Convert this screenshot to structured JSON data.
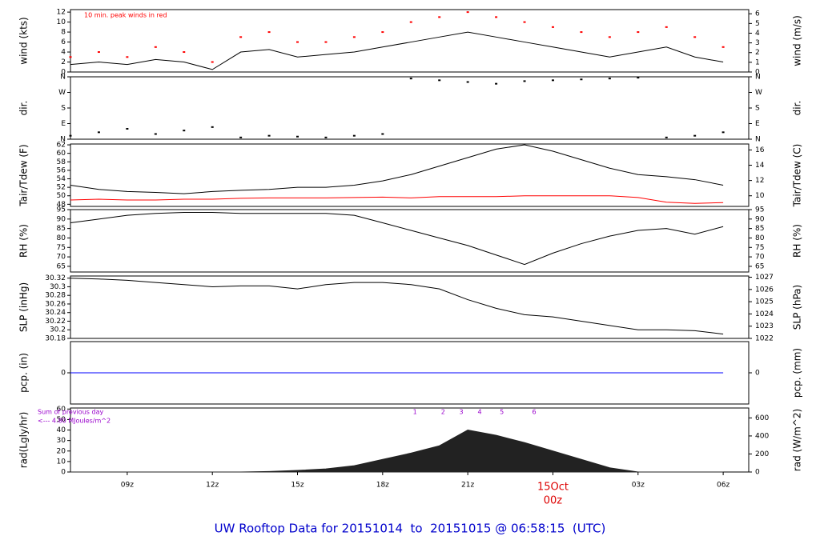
{
  "chart_data": [
    {
      "type": "line",
      "ylabel": "wind (kts)",
      "y2label": "wind (m/s)",
      "annotation": "10 min. peak winds in red",
      "x": [
        7,
        8,
        9,
        10,
        11,
        12,
        13,
        14,
        15,
        16,
        17,
        18,
        19,
        20,
        21,
        22,
        23,
        24,
        25,
        26,
        27,
        28,
        29,
        30
      ],
      "xlim": [
        7,
        30.9
      ],
      "ylim": [
        0,
        12.5
      ],
      "yticks": [
        0,
        2,
        4,
        6,
        8,
        10,
        12
      ],
      "y2lim": [
        0,
        6.43
      ],
      "y2ticks": [
        0,
        1,
        2,
        3,
        4,
        5,
        6
      ],
      "series": [
        {
          "name": "wind",
          "color": "#000000",
          "values": [
            1.5,
            2,
            1.5,
            2.5,
            2,
            0.5,
            4,
            4.5,
            3,
            3.5,
            4,
            5,
            6,
            7,
            8,
            7,
            6,
            5,
            4,
            3,
            4,
            5,
            3,
            2
          ]
        },
        {
          "name": "peak",
          "color": "#ff0000",
          "style": "points",
          "values": [
            3,
            4,
            3,
            5,
            4,
            2,
            7,
            8,
            6,
            6,
            7,
            8,
            10,
            11,
            12,
            11,
            10,
            9,
            8,
            7,
            8,
            9,
            7,
            5
          ]
        }
      ]
    },
    {
      "type": "scatter",
      "ylabel": "dir.",
      "y2label": "dir.",
      "x": [
        7,
        8,
        9,
        10,
        11,
        12,
        13,
        14,
        15,
        16,
        17,
        18,
        19,
        20,
        21,
        22,
        23,
        24,
        25,
        26,
        27,
        28,
        29,
        30
      ],
      "xlim": [
        7,
        30.9
      ],
      "ylim": [
        0,
        360
      ],
      "yticks": [
        {
          "value": 0,
          "label": "N"
        },
        {
          "value": 90,
          "label": "E"
        },
        {
          "value": 180,
          "label": "S"
        },
        {
          "value": 270,
          "label": "W"
        },
        {
          "value": 360,
          "label": "N"
        }
      ],
      "y2lim": [
        0,
        360
      ],
      "y2ticks": [
        {
          "value": 0,
          "label": "N"
        },
        {
          "value": 90,
          "label": "E"
        },
        {
          "value": 180,
          "label": "S"
        },
        {
          "value": 270,
          "label": "W"
        },
        {
          "value": 360,
          "label": "N"
        }
      ],
      "series": [
        {
          "name": "dir",
          "color": "#000000",
          "values": [
            20,
            40,
            60,
            30,
            50,
            70,
            10,
            20,
            15,
            10,
            20,
            30,
            350,
            340,
            330,
            320,
            335,
            340,
            345,
            350,
            355,
            10,
            20,
            40
          ]
        }
      ]
    },
    {
      "type": "line",
      "ylabel": "Tair/Tdew (F)",
      "y2label": "Tair/Tdew (C)",
      "x": [
        7,
        8,
        9,
        10,
        11,
        12,
        13,
        14,
        15,
        16,
        17,
        18,
        19,
        20,
        21,
        22,
        23,
        24,
        25,
        26,
        27,
        28,
        29,
        30
      ],
      "xlim": [
        7,
        30.9
      ],
      "ylim": [
        47.5,
        62.2
      ],
      "yticks": [
        48,
        50,
        52,
        54,
        56,
        58,
        60,
        62
      ],
      "y2lim": [
        8.61,
        16.78
      ],
      "y2ticks": [
        10,
        12,
        14,
        16
      ],
      "series": [
        {
          "name": "Tair",
          "color": "#000000",
          "values": [
            52.5,
            51.5,
            51,
            50.8,
            50.5,
            51,
            51.3,
            51.5,
            52,
            52,
            52.5,
            53.5,
            55,
            57,
            59,
            61,
            62,
            60.5,
            58.5,
            56.5,
            55,
            54.5,
            53.8,
            52.5
          ]
        },
        {
          "name": "Tdew",
          "color": "#ff0000",
          "values": [
            49,
            49.2,
            49,
            49,
            49.2,
            49.2,
            49.4,
            49.5,
            49.5,
            49.5,
            49.6,
            49.7,
            49.5,
            49.8,
            49.8,
            49.8,
            50,
            50,
            50,
            50,
            49.6,
            48.5,
            48.2,
            48.4
          ]
        }
      ]
    },
    {
      "type": "line",
      "ylabel": "RH (%)",
      "y2label": "RH (%)",
      "x": [
        7,
        8,
        9,
        10,
        11,
        12,
        13,
        14,
        15,
        16,
        17,
        18,
        19,
        20,
        21,
        22,
        23,
        24,
        25,
        26,
        27,
        28,
        29,
        30
      ],
      "xlim": [
        7,
        30.9
      ],
      "ylim": [
        62,
        95
      ],
      "yticks": [
        65,
        70,
        75,
        80,
        85,
        90,
        95
      ],
      "y2lim": [
        62,
        95
      ],
      "y2ticks": [
        65,
        70,
        75,
        80,
        85,
        90,
        95
      ],
      "series": [
        {
          "name": "RH",
          "color": "#000000",
          "values": [
            88,
            90,
            92,
            93,
            93.5,
            93.5,
            93,
            93,
            93,
            93,
            92,
            88,
            84,
            80,
            76,
            71,
            66,
            72,
            77,
            81,
            84,
            85,
            82,
            86
          ]
        }
      ]
    },
    {
      "type": "line",
      "ylabel": "SLP (inHg)",
      "y2label": "SLP (hPa)",
      "x": [
        7,
        8,
        9,
        10,
        11,
        12,
        13,
        14,
        15,
        16,
        17,
        18,
        19,
        20,
        21,
        22,
        23,
        24,
        25,
        26,
        27,
        28,
        29,
        30
      ],
      "xlim": [
        7,
        30.9
      ],
      "ylim": [
        30.18,
        30.325
      ],
      "yticks": [
        30.18,
        30.2,
        30.22,
        30.24,
        30.26,
        30.28,
        30.3,
        30.32
      ],
      "y2lim": [
        1022,
        1027.1
      ],
      "y2ticks": [
        1022,
        1023,
        1024,
        1025,
        1026,
        1027
      ],
      "series": [
        {
          "name": "SLP",
          "color": "#000000",
          "values": [
            30.32,
            30.318,
            30.315,
            30.31,
            30.305,
            30.3,
            30.302,
            30.302,
            30.295,
            30.305,
            30.31,
            30.31,
            30.305,
            30.295,
            30.27,
            30.25,
            30.235,
            30.23,
            30.22,
            30.21,
            30.2,
            30.2,
            30.198,
            30.19
          ]
        }
      ]
    },
    {
      "type": "line",
      "ylabel": "pcp. (in)",
      "y2label": "pcp. (mm)",
      "x": [
        7,
        8,
        9,
        10,
        11,
        12,
        13,
        14,
        15,
        16,
        17,
        18,
        19,
        20,
        21,
        22,
        23,
        24,
        25,
        26,
        27,
        28,
        29,
        30
      ],
      "xlim": [
        7,
        30.9
      ],
      "ylim": [
        -1,
        1
      ],
      "yticks": [
        0
      ],
      "y2lim": [
        -1,
        1
      ],
      "y2ticks": [
        0
      ],
      "series": [
        {
          "name": "pcp",
          "color": "#0000ff",
          "values": [
            0,
            0,
            0,
            0,
            0,
            0,
            0,
            0,
            0,
            0,
            0,
            0,
            0,
            0,
            0,
            0,
            0,
            0,
            0,
            0,
            0,
            0,
            0,
            0
          ]
        }
      ]
    },
    {
      "type": "area",
      "ylabel": "rad(Lgly/hr)",
      "y2label": "rad (W/m^2)",
      "notes": [
        "Sum of previous day",
        "<--- 4.80 MJoules/m^2"
      ],
      "markers": [
        {
          "x": 19.14,
          "label": "1"
        },
        {
          "x": 20.13,
          "label": "2"
        },
        {
          "x": 20.77,
          "label": "3"
        },
        {
          "x": 21.42,
          "label": "4"
        },
        {
          "x": 22.2,
          "label": "5"
        },
        {
          "x": 23.34,
          "label": "6"
        }
      ],
      "x": [
        7,
        8,
        9,
        10,
        11,
        12,
        13,
        14,
        15,
        16,
        17,
        18,
        19,
        20,
        21,
        22,
        23,
        24,
        25,
        26,
        27,
        28,
        29,
        30
      ],
      "xlim": [
        7,
        30.9
      ],
      "ylim": [
        0,
        61
      ],
      "yticks": [
        0,
        10,
        20,
        30,
        40,
        50,
        60
      ],
      "y2lim": [
        0,
        710
      ],
      "y2ticks": [
        0,
        200,
        400,
        600
      ],
      "xticks": [
        {
          "value": 9,
          "label": "09z"
        },
        {
          "value": 12,
          "label": "12z"
        },
        {
          "value": 15,
          "label": "15z"
        },
        {
          "value": 18,
          "label": "18z"
        },
        {
          "value": 21,
          "label": "21z"
        },
        {
          "value": 24,
          "label": "00z"
        },
        {
          "value": 27,
          "label": "03z"
        },
        {
          "value": 30,
          "label": "06z"
        }
      ],
      "date_label": {
        "value": 24,
        "label": "15Oct"
      },
      "title": "UW Rooftop Data for 20151014  to  20151015 @ 06:58:15  (UTC)",
      "series": [
        {
          "name": "rad",
          "color": "#222222",
          "values": [
            0,
            0,
            0,
            0,
            0,
            0,
            0,
            0.5,
            1.5,
            3,
            6,
            12,
            18,
            25,
            40,
            35,
            28,
            20,
            12,
            4,
            0,
            0,
            0,
            0
          ]
        }
      ]
    }
  ]
}
